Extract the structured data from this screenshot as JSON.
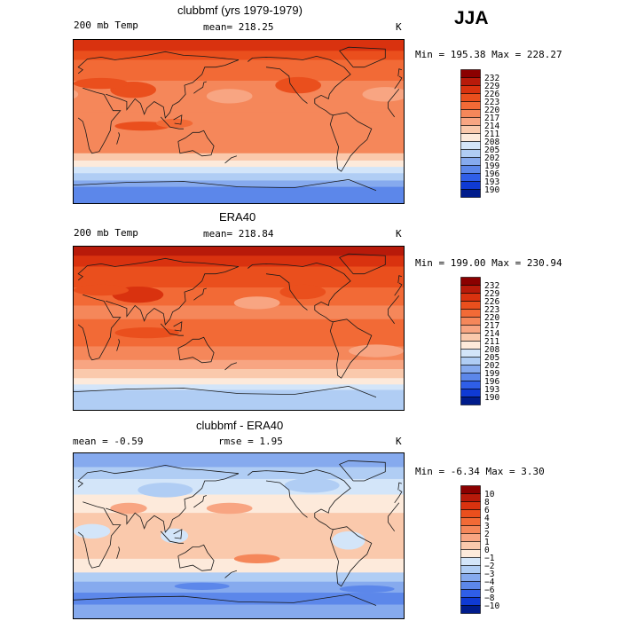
{
  "season": "JJA",
  "chart_data": [
    {
      "type": "heatmap",
      "title": "clubbmf (yrs 1979-1979)",
      "variable": "200 mb Temp",
      "mean_text": "mean= 218.25",
      "units": "K",
      "minmax_text": "Min = 195.38 Max = 228.27",
      "min": 195.38,
      "max": 228.27,
      "mean": 218.25,
      "colorbar": {
        "labels": [
          "232",
          "229",
          "226",
          "223",
          "220",
          "217",
          "214",
          "211",
          "208",
          "205",
          "202",
          "199",
          "196",
          "193",
          "190"
        ],
        "colors": [
          "#8b0000",
          "#b81a0a",
          "#d9320f",
          "#ea4f1d",
          "#f26a36",
          "#f5875a",
          "#f8a582",
          "#fac9ac",
          "#fdeadb",
          "#d3e5f9",
          "#b0cdf4",
          "#86aaee",
          "#5c87ea",
          "#2f5ee8",
          "#0f3ad4",
          "#001c8c"
        ]
      },
      "bands": [
        {
          "lat_from": 90,
          "lat_to": 78,
          "value": 228
        },
        {
          "lat_from": 78,
          "lat_to": 68,
          "value": 225
        },
        {
          "lat_from": 68,
          "lat_to": 45,
          "value": 222
        },
        {
          "lat_from": 45,
          "lat_to": 25,
          "value": 219
        },
        {
          "lat_from": 25,
          "lat_to": 10,
          "value": 218
        },
        {
          "lat_from": 10,
          "lat_to": -20,
          "value": 219
        },
        {
          "lat_from": -20,
          "lat_to": -35,
          "value": 217
        },
        {
          "lat_from": -35,
          "lat_to": -43,
          "value": 213
        },
        {
          "lat_from": -43,
          "lat_to": -50,
          "value": 209
        },
        {
          "lat_from": -50,
          "lat_to": -57,
          "value": 206
        },
        {
          "lat_from": -57,
          "lat_to": -65,
          "value": 202
        },
        {
          "lat_from": -65,
          "lat_to": -72,
          "value": 199
        },
        {
          "lat_from": -72,
          "lat_to": -90,
          "value": 196
        }
      ],
      "blobs": [
        {
          "lon": 65,
          "lat": 35,
          "rlon": 25,
          "rlat": 9,
          "value": 225
        },
        {
          "lon": 30,
          "lat": 42,
          "rlon": 30,
          "rlat": 6,
          "value": 223
        },
        {
          "lon": -115,
          "lat": 40,
          "rlon": 25,
          "rlat": 9,
          "value": 223
        },
        {
          "lon": 170,
          "lat": 28,
          "rlon": 25,
          "rlat": 8,
          "value": 216
        },
        {
          "lon": -20,
          "lat": 30,
          "rlon": 25,
          "rlat": 8,
          "value": 216
        },
        {
          "lon": 75,
          "lat": -5,
          "rlon": 30,
          "rlat": 5,
          "value": 223
        },
        {
          "lon": 110,
          "lat": -2,
          "rlon": 20,
          "rlat": 5,
          "value": 222
        }
      ]
    },
    {
      "type": "heatmap",
      "title": "ERA40",
      "variable": "200 mb Temp",
      "mean_text": "mean= 218.84",
      "units": "K",
      "minmax_text": "Min = 199.00 Max = 230.94",
      "min": 199.0,
      "max": 230.94,
      "mean": 218.84,
      "colorbar": {
        "labels": [
          "232",
          "229",
          "226",
          "223",
          "220",
          "217",
          "214",
          "211",
          "208",
          "205",
          "202",
          "199",
          "196",
          "193",
          "190"
        ],
        "colors": [
          "#8b0000",
          "#b81a0a",
          "#d9320f",
          "#ea4f1d",
          "#f26a36",
          "#f5875a",
          "#f8a582",
          "#fac9ac",
          "#fdeadb",
          "#d3e5f9",
          "#b0cdf4",
          "#86aaee",
          "#5c87ea",
          "#2f5ee8",
          "#0f3ad4",
          "#001c8c"
        ]
      },
      "bands": [
        {
          "lat_from": 90,
          "lat_to": 80,
          "value": 230
        },
        {
          "lat_from": 80,
          "lat_to": 68,
          "value": 227
        },
        {
          "lat_from": 68,
          "lat_to": 45,
          "value": 224
        },
        {
          "lat_from": 45,
          "lat_to": 25,
          "value": 221
        },
        {
          "lat_from": 25,
          "lat_to": 10,
          "value": 219
        },
        {
          "lat_from": 10,
          "lat_to": -20,
          "value": 221
        },
        {
          "lat_from": -20,
          "lat_to": -35,
          "value": 218
        },
        {
          "lat_from": -35,
          "lat_to": -45,
          "value": 215
        },
        {
          "lat_from": -45,
          "lat_to": -55,
          "value": 212
        },
        {
          "lat_from": -55,
          "lat_to": -62,
          "value": 209
        },
        {
          "lat_from": -62,
          "lat_to": -68,
          "value": 206
        },
        {
          "lat_from": -68,
          "lat_to": -90,
          "value": 203
        }
      ],
      "blobs": [
        {
          "lon": 70,
          "lat": 37,
          "rlon": 28,
          "rlat": 9,
          "value": 227
        },
        {
          "lon": 30,
          "lat": 42,
          "rlon": 30,
          "rlat": 6,
          "value": 225
        },
        {
          "lon": -110,
          "lat": 40,
          "rlon": 25,
          "rlat": 8,
          "value": 224
        },
        {
          "lon": -160,
          "lat": 28,
          "rlon": 25,
          "rlat": 7,
          "value": 216
        },
        {
          "lon": 80,
          "lat": -5,
          "rlon": 35,
          "rlat": 6,
          "value": 224
        },
        {
          "lon": -30,
          "lat": -25,
          "rlon": 30,
          "rlat": 7,
          "value": 216
        }
      ]
    },
    {
      "type": "heatmap",
      "title": "clubbmf - ERA40",
      "mean_text": "mean =   -0.59",
      "rmse_text": "rmse =    1.95",
      "units": "K",
      "minmax_text": "Min =  -6.34 Max =    3.30",
      "min": -6.34,
      "max": 3.3,
      "mean": -0.59,
      "rmse": 1.95,
      "colorbar": {
        "labels": [
          "10",
          "8",
          "6",
          "4",
          "3",
          "2",
          "1",
          "0",
          "−1",
          "−2",
          "−3",
          "−4",
          "−6",
          "−8",
          "−10"
        ],
        "colors": [
          "#8b0000",
          "#b81a0a",
          "#d9320f",
          "#ea4f1d",
          "#f26a36",
          "#f5875a",
          "#f8a582",
          "#fac9ac",
          "#fdeadb",
          "#d3e5f9",
          "#b0cdf4",
          "#86aaee",
          "#5c87ea",
          "#2f5ee8",
          "#0f3ad4",
          "#001c8c"
        ]
      },
      "bands": [
        {
          "lat_from": 90,
          "lat_to": 75,
          "value": -3.5
        },
        {
          "lat_from": 75,
          "lat_to": 62,
          "value": -2.5
        },
        {
          "lat_from": 62,
          "lat_to": 45,
          "value": -1.5
        },
        {
          "lat_from": 45,
          "lat_to": 25,
          "value": -0.5
        },
        {
          "lat_from": 25,
          "lat_to": -25,
          "value": 0.5
        },
        {
          "lat_from": -25,
          "lat_to": -40,
          "value": -0.5
        },
        {
          "lat_from": -40,
          "lat_to": -50,
          "value": -2.5
        },
        {
          "lat_from": -50,
          "lat_to": -62,
          "value": -3.5
        },
        {
          "lat_from": -62,
          "lat_to": -75,
          "value": -4.5
        },
        {
          "lat_from": -75,
          "lat_to": -90,
          "value": -3.5
        }
      ],
      "blobs": [
        {
          "lon": 100,
          "lat": 50,
          "rlon": 30,
          "rlat": 8,
          "value": -2.5
        },
        {
          "lon": -100,
          "lat": 55,
          "rlon": 30,
          "rlat": 8,
          "value": -2.5
        },
        {
          "lon": 60,
          "lat": 30,
          "rlon": 20,
          "rlat": 6,
          "value": 1.5
        },
        {
          "lon": 170,
          "lat": 30,
          "rlon": 25,
          "rlat": 6,
          "value": 1.5
        },
        {
          "lon": -160,
          "lat": -25,
          "rlon": 25,
          "rlat": 5,
          "value": 2.5
        },
        {
          "lon": 20,
          "lat": 5,
          "rlon": 20,
          "rlat": 8,
          "value": -1.5
        },
        {
          "lon": -60,
          "lat": -5,
          "rlon": 18,
          "rlat": 10,
          "value": -1.5
        },
        {
          "lon": 110,
          "lat": 0,
          "rlon": 15,
          "rlat": 8,
          "value": -1.5
        },
        {
          "lon": 140,
          "lat": -55,
          "rlon": 30,
          "rlat": 4,
          "value": -5.5
        },
        {
          "lon": -40,
          "lat": -58,
          "rlon": 30,
          "rlat": 4,
          "value": -5.5
        }
      ]
    }
  ]
}
